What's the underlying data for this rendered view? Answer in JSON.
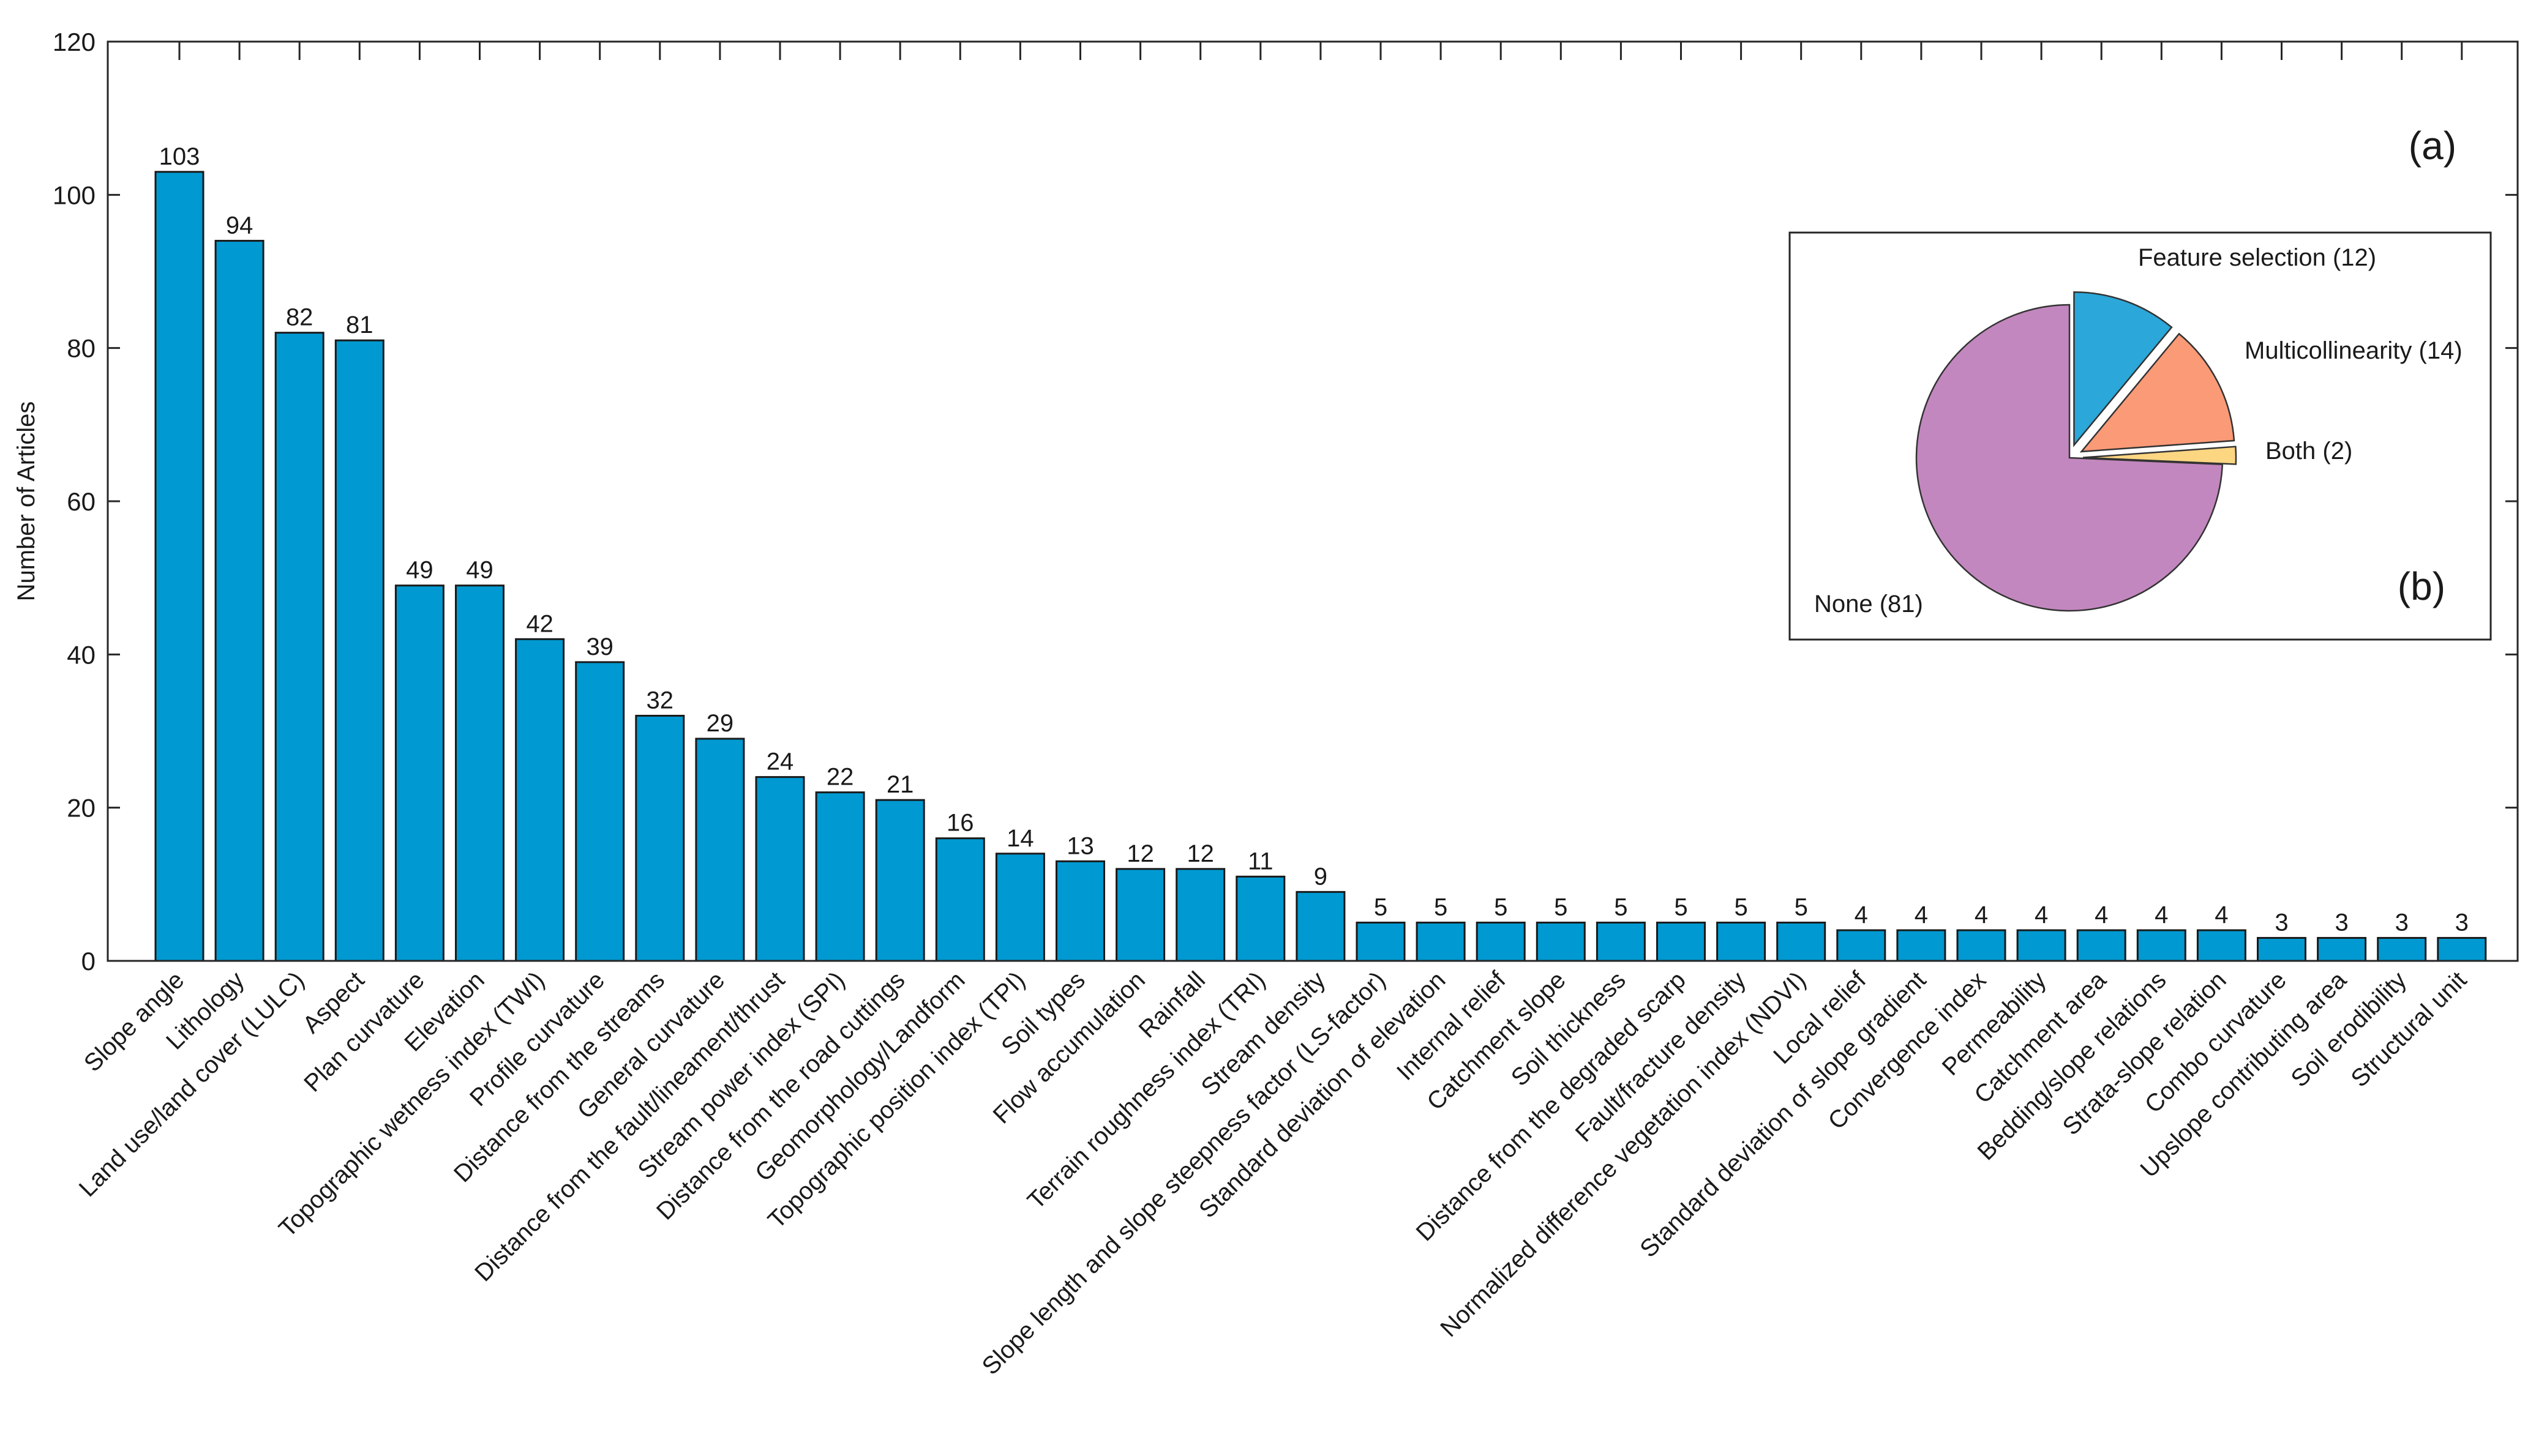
{
  "chart_data": [
    {
      "type": "bar",
      "panel_label": "(a)",
      "ylabel": "Number of Articles",
      "xlabel": "",
      "ylim": [
        0,
        120
      ],
      "yticks": [
        0,
        20,
        40,
        60,
        80,
        100,
        120
      ],
      "bar_color": "#0099d1",
      "categories": [
        "Slope angle",
        "Lithology",
        "Land use/land cover (LULC)",
        "Aspect",
        "Plan curvature",
        "Elevation",
        "Topographic wetness index (TWI)",
        "Profile curvature",
        "Distance from the streams",
        "General curvature",
        "Distance from the fault/lineament/thrust",
        "Stream power index (SPI)",
        "Distance from the road cuttings",
        "Geomorphology/Landform",
        "Topographic position index (TPI)",
        "Soil types",
        "Flow accumulation",
        "Rainfall",
        "Terrain roughness index (TRI)",
        "Stream density",
        "Slope length and slope steepness factor (LS-factor)",
        "Standard deviation of elevation",
        "Internal relief",
        "Catchment slope",
        "Soil thickness",
        "Distance from the degraded scarp",
        "Fault/fracture density",
        "Normalized difference vegetation index (NDVI)",
        "Local relief",
        "Standard deviation of slope gradient",
        "Convergence index",
        "Permeability",
        "Catchment area",
        "Bedding/slope relations",
        "Strata-slope relation",
        "Combo curvature",
        "Upslope contributing area",
        "Soil erodibility",
        "Structural unit"
      ],
      "values": [
        103,
        94,
        82,
        81,
        49,
        49,
        42,
        39,
        32,
        29,
        24,
        22,
        21,
        16,
        14,
        13,
        12,
        12,
        11,
        9,
        5,
        5,
        5,
        5,
        5,
        5,
        5,
        5,
        4,
        4,
        4,
        4,
        4,
        4,
        4,
        3,
        3,
        3,
        3
      ]
    },
    {
      "type": "pie",
      "panel_label": "(b)",
      "slices": [
        {
          "label": "Feature selection (12)",
          "value": 12,
          "color": "#2ba7d9"
        },
        {
          "label": "Multicollinearity (14)",
          "value": 14,
          "color": "#fb9a77"
        },
        {
          "label": "Both (2)",
          "value": 2,
          "color": "#fdd682"
        },
        {
          "label": "None (81)",
          "value": 81,
          "color": "#c387bf"
        }
      ]
    }
  ]
}
